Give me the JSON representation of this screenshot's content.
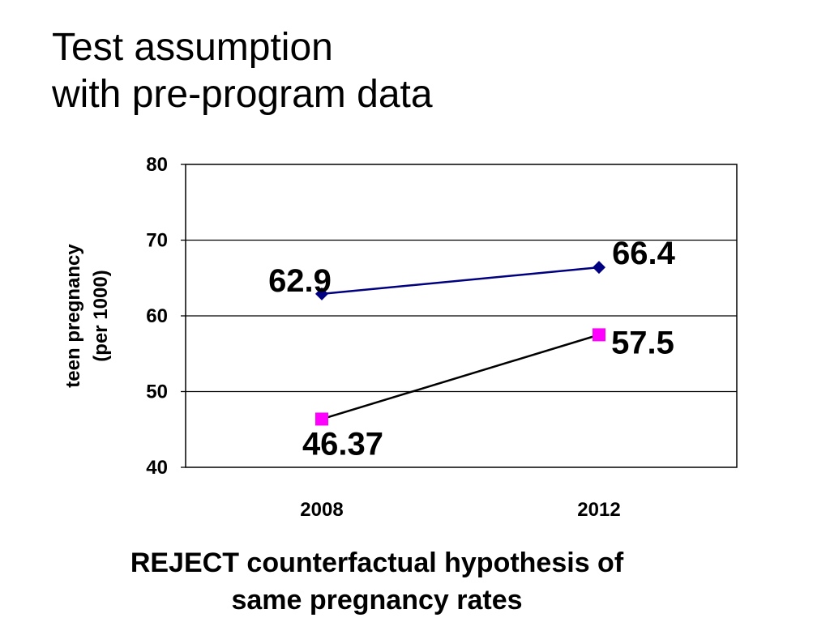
{
  "slide": {
    "title_lines": [
      "Test assumption",
      "with pre-program data"
    ],
    "conclusion_lines": [
      "REJECT counterfactual hypothesis of",
      "same pregnancy rates"
    ]
  },
  "chart_data": {
    "type": "line",
    "categories": [
      "2008",
      "2012"
    ],
    "ylabel_lines": [
      "teen pregnancy",
      "(per 1000)"
    ],
    "ylim": [
      40,
      80
    ],
    "yticks": [
      40,
      50,
      60,
      70,
      80
    ],
    "grid": true,
    "series": [
      {
        "values": [
          62.9,
          66.4
        ],
        "labels": [
          "62.9",
          "66.4"
        ],
        "color": "#000080",
        "marker": "diamond",
        "line_color": "#000080"
      },
      {
        "values": [
          46.37,
          57.5
        ],
        "labels": [
          "46.37",
          "57.5"
        ],
        "color": "#FF00FF",
        "marker": "square",
        "line_color": "#000000"
      }
    ]
  }
}
